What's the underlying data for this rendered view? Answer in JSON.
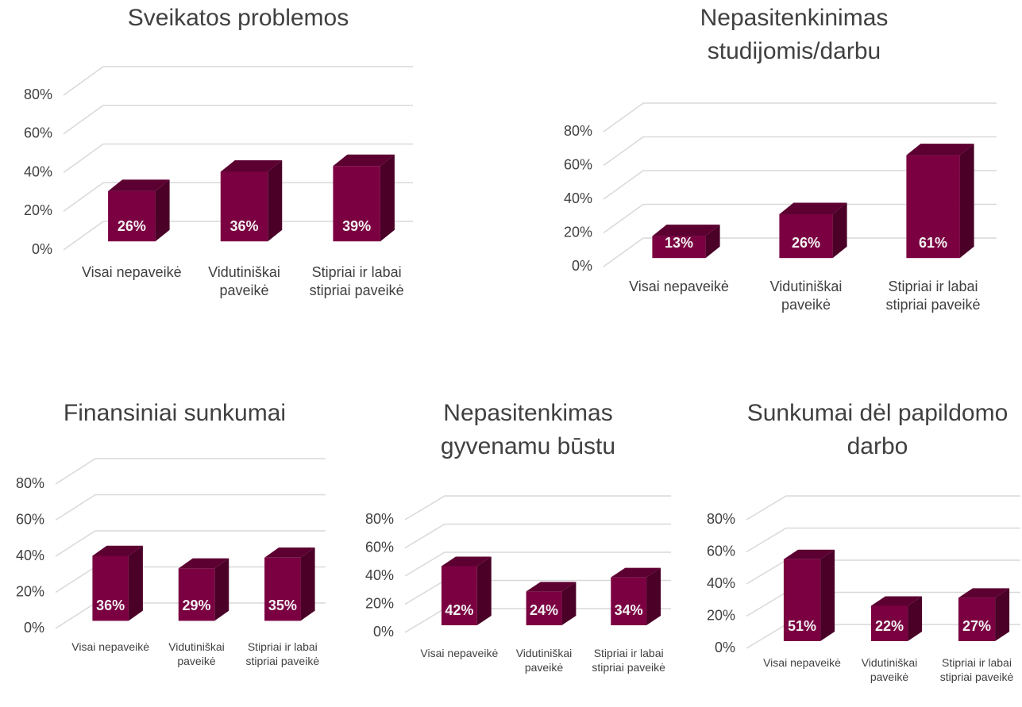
{
  "chart_data": [
    {
      "type": "bar",
      "title": "Sveikatos problemos",
      "categories": [
        "Visai nepaveikė",
        "Vidutiniškai paveikė",
        "Stipriai ir labai stipriai paveikė"
      ],
      "values": [
        26,
        36,
        39
      ],
      "value_labels": [
        "26%",
        "36%",
        "39%"
      ],
      "color": "#7b0041",
      "ylim": [
        0,
        80
      ],
      "yticks": [
        {
          "value": 0,
          "label": "0%"
        },
        {
          "value": 20,
          "label": "20%"
        },
        {
          "value": 40,
          "label": "40%"
        },
        {
          "value": 60,
          "label": "60%"
        },
        {
          "value": 80,
          "label": "80%"
        }
      ],
      "grid": true
    },
    {
      "type": "bar",
      "title": "Nepasitenkinimas studijomis/darbu",
      "categories": [
        "Visai nepaveikė",
        "Vidutiniškai paveikė",
        "Stipriai ir labai stipriai paveikė"
      ],
      "values": [
        13,
        26,
        61
      ],
      "value_labels": [
        "13%",
        "26%",
        "61%"
      ],
      "color": "#7b0041",
      "ylim": [
        0,
        80
      ],
      "yticks": [
        {
          "value": 0,
          "label": "0%"
        },
        {
          "value": 20,
          "label": "20%"
        },
        {
          "value": 40,
          "label": "40%"
        },
        {
          "value": 60,
          "label": "60%"
        },
        {
          "value": 80,
          "label": "80%"
        }
      ],
      "grid": true
    },
    {
      "type": "bar",
      "title": "Finansiniai sunkumai",
      "categories": [
        "Visai nepaveikė",
        "Vidutiniškai paveikė",
        "Stipriai ir labai stipriai paveikė"
      ],
      "values": [
        36,
        29,
        35
      ],
      "value_labels": [
        "36%",
        "29%",
        "35%"
      ],
      "color": "#7b0041",
      "ylim": [
        0,
        80
      ],
      "yticks": [
        {
          "value": 0,
          "label": "0%"
        },
        {
          "value": 20,
          "label": "20%"
        },
        {
          "value": 40,
          "label": "40%"
        },
        {
          "value": 60,
          "label": "60%"
        },
        {
          "value": 80,
          "label": "80%"
        }
      ],
      "grid": true
    },
    {
      "type": "bar",
      "title": "Nepasitenkimas gyvenamu būstu",
      "categories": [
        "Visai nepaveikė",
        "Vidutiniškai paveikė",
        "Stipriai ir labai stipriai paveikė"
      ],
      "values": [
        42,
        24,
        34
      ],
      "value_labels": [
        "42%",
        "24%",
        "34%"
      ],
      "color": "#7b0041",
      "ylim": [
        0,
        80
      ],
      "yticks": [
        {
          "value": 0,
          "label": "0%"
        },
        {
          "value": 20,
          "label": "20%"
        },
        {
          "value": 40,
          "label": "40%"
        },
        {
          "value": 60,
          "label": "60%"
        },
        {
          "value": 80,
          "label": "80%"
        }
      ],
      "grid": true
    },
    {
      "type": "bar",
      "title": "Sunkumai dėl papildomo darbo",
      "categories": [
        "Visai nepaveikė",
        "Vidutiniškai paveikė",
        "Stipriai ir labai stipriai paveikė"
      ],
      "values": [
        51,
        22,
        27
      ],
      "value_labels": [
        "51%",
        "22%",
        "27%"
      ],
      "color": "#7b0041",
      "ylim": [
        0,
        80
      ],
      "yticks": [
        {
          "value": 0,
          "label": "0%"
        },
        {
          "value": 20,
          "label": "20%"
        },
        {
          "value": 40,
          "label": "40%"
        },
        {
          "value": 60,
          "label": "60%"
        },
        {
          "value": 80,
          "label": "80%"
        }
      ],
      "grid": true
    }
  ]
}
